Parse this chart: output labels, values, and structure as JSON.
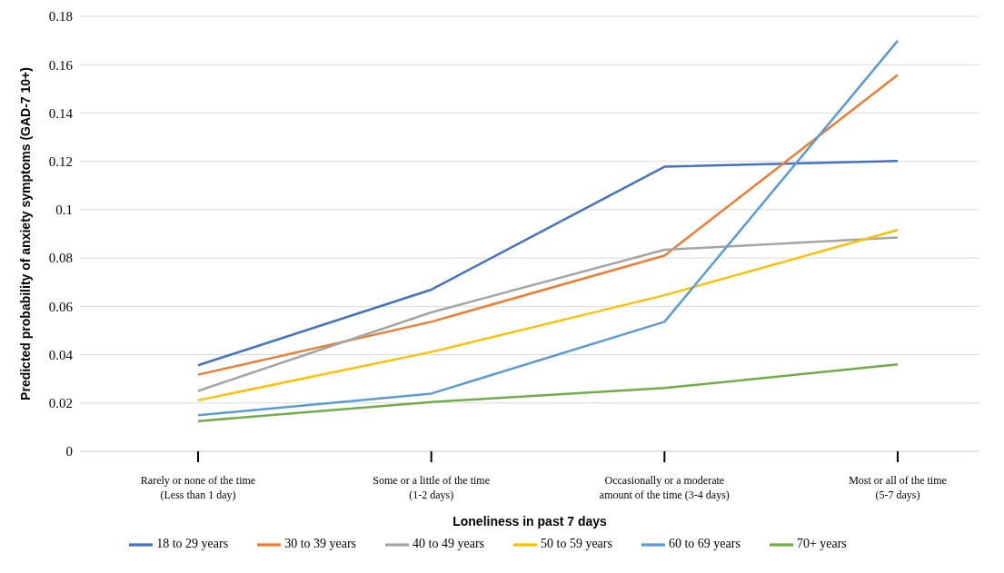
{
  "chart_data": {
    "type": "line",
    "xlabel": "Loneliness in past 7 days",
    "ylabel": "Predicted probability of anxiety symptoms (GAD-7 10+)",
    "categories": [
      "Rarely or none of the time\n(Less than 1 day)",
      "Some or a little of the time\n(1-2 days)",
      "Occasionally or a moderate\namount of the time (3-4 days)",
      "Most or all of the time\n(5-7 days)"
    ],
    "series": [
      {
        "name": "18 to 29 years",
        "color": "#4472c4",
        "values": [
          0.0356,
          0.0669,
          0.1178,
          0.1202
        ]
      },
      {
        "name": "30 to 39 years",
        "color": "#ed7d31",
        "values": [
          0.0317,
          0.0536,
          0.081,
          0.1558
        ]
      },
      {
        "name": "40 to 49 years",
        "color": "#a5a5a5",
        "values": [
          0.025,
          0.0575,
          0.0834,
          0.0885
        ]
      },
      {
        "name": "50 to 59 years",
        "color": "#ffc000",
        "values": [
          0.0211,
          0.0411,
          0.0646,
          0.0916
        ]
      },
      {
        "name": "60 to 69 years",
        "color": "#5b9bd5",
        "values": [
          0.0149,
          0.0239,
          0.0536,
          0.1699
        ]
      },
      {
        "name": "70+ years",
        "color": "#70ad47",
        "values": [
          0.0125,
          0.0204,
          0.0262,
          0.036
        ]
      }
    ],
    "ylim": [
      0,
      0.18
    ],
    "yticks": [
      0,
      0.02,
      0.04,
      0.06,
      0.08,
      0.1,
      0.12,
      0.14,
      0.16,
      0.18
    ],
    "grid": "y",
    "legend": "bottom",
    "marker": "none",
    "line_style": "solid"
  }
}
